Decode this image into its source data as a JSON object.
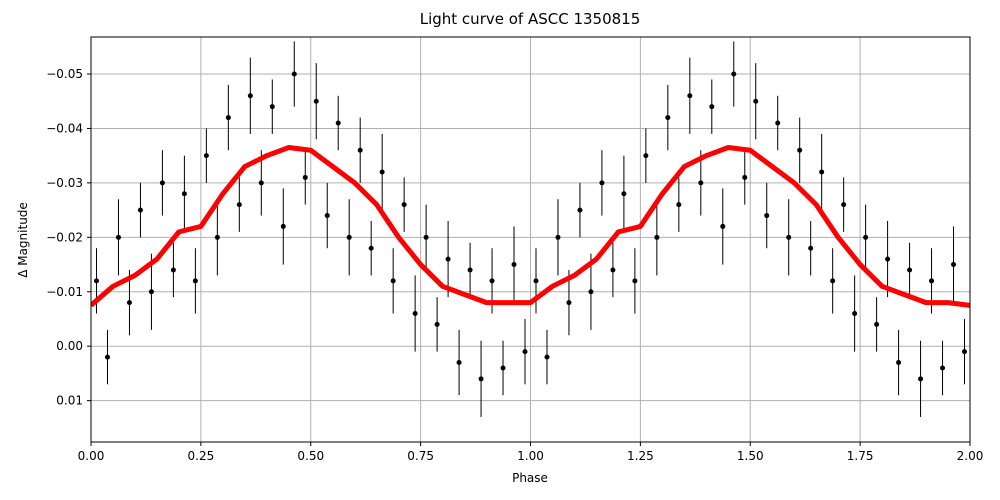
{
  "chart_data": {
    "type": "errorbar-line",
    "title": "Light curve of ASCC 1350815",
    "xlabel": "Phase",
    "ylabel": "Δ Magnitude",
    "xlim": [
      0,
      2
    ],
    "ylim": [
      0.0176,
      -0.0568
    ],
    "grid": true,
    "xticks": [
      {
        "value": 0,
        "label": "0.00"
      },
      {
        "value": 0.25,
        "label": "0.25"
      },
      {
        "value": 0.5,
        "label": "0.50"
      },
      {
        "value": 0.75,
        "label": "0.75"
      },
      {
        "value": 1,
        "label": "1.00"
      },
      {
        "value": 1.25,
        "label": "1.25"
      },
      {
        "value": 1.5,
        "label": "1.50"
      },
      {
        "value": 1.75,
        "label": "1.75"
      },
      {
        "value": 2,
        "label": "2.00"
      }
    ],
    "yticks": [
      {
        "value": -0.05,
        "label": "−0.05"
      },
      {
        "value": -0.04,
        "label": "−0.04"
      },
      {
        "value": -0.03,
        "label": "−0.03"
      },
      {
        "value": -0.02,
        "label": "−0.02"
      },
      {
        "value": -0.01,
        "label": "−0.01"
      },
      {
        "value": 0,
        "label": "0.00"
      },
      {
        "value": 0.01,
        "label": "0.01"
      }
    ],
    "points": {
      "color": "#000000",
      "x": [
        0.0125,
        0.0375,
        0.0625,
        0.0875,
        0.1125,
        0.1375,
        0.1625,
        0.1875,
        0.2125,
        0.2375,
        0.2625,
        0.2875,
        0.3125,
        0.3375,
        0.3625,
        0.3875,
        0.4125,
        0.4375,
        0.4625,
        0.4875,
        0.5125,
        0.5375,
        0.5625,
        0.5875,
        0.6125,
        0.6375,
        0.6625,
        0.6875,
        0.7125,
        0.7375,
        0.7625,
        0.7875,
        0.8125,
        0.8375,
        0.8625,
        0.8875,
        0.9125,
        0.9375,
        0.9625,
        0.9875,
        1.0125,
        1.0375,
        1.0625,
        1.0875,
        1.1125,
        1.1375,
        1.1625,
        1.1875,
        1.2125,
        1.2375,
        1.2625,
        1.2875,
        1.3125,
        1.3375,
        1.3625,
        1.3875,
        1.4125,
        1.4375,
        1.4625,
        1.4875,
        1.5125,
        1.5375,
        1.5625,
        1.5875,
        1.6125,
        1.6375,
        1.6625,
        1.6875,
        1.7125,
        1.7375,
        1.7625,
        1.7875,
        1.8125,
        1.8375,
        1.8625,
        1.8875,
        1.9125,
        1.9375,
        1.9625,
        1.9875
      ],
      "values": [
        -0.012,
        0.002,
        -0.02,
        -0.008,
        -0.025,
        -0.01,
        -0.03,
        -0.014,
        -0.028,
        -0.012,
        -0.035,
        -0.02,
        -0.042,
        -0.026,
        -0.046,
        -0.03,
        -0.044,
        -0.022,
        -0.05,
        -0.031,
        -0.045,
        -0.024,
        -0.041,
        -0.02,
        -0.036,
        -0.018,
        -0.032,
        -0.012,
        -0.026,
        -0.006,
        -0.02,
        -0.004,
        -0.016,
        0.003,
        -0.014,
        0.006,
        -0.012,
        0.004,
        -0.015,
        0.001,
        -0.012,
        0.002,
        -0.02,
        -0.008,
        -0.025,
        -0.01,
        -0.03,
        -0.014,
        -0.028,
        -0.012,
        -0.035,
        -0.02,
        -0.042,
        -0.026,
        -0.046,
        -0.03,
        -0.044,
        -0.022,
        -0.05,
        -0.031,
        -0.045,
        -0.024,
        -0.041,
        -0.02,
        -0.036,
        -0.018,
        -0.032,
        -0.012,
        -0.026,
        -0.006,
        -0.02,
        -0.004,
        -0.016,
        0.003,
        -0.014,
        0.006,
        -0.012,
        0.004,
        -0.015,
        0.001
      ],
      "errors": [
        0.006,
        0.005,
        0.007,
        0.006,
        0.005,
        0.007,
        0.006,
        0.005,
        0.007,
        0.006,
        0.005,
        0.007,
        0.006,
        0.005,
        0.007,
        0.006,
        0.005,
        0.007,
        0.006,
        0.005,
        0.007,
        0.006,
        0.005,
        0.007,
        0.006,
        0.005,
        0.007,
        0.006,
        0.005,
        0.007,
        0.006,
        0.005,
        0.007,
        0.006,
        0.005,
        0.007,
        0.006,
        0.005,
        0.007,
        0.006,
        0.006,
        0.005,
        0.007,
        0.006,
        0.005,
        0.007,
        0.006,
        0.005,
        0.007,
        0.006,
        0.005,
        0.007,
        0.006,
        0.005,
        0.007,
        0.006,
        0.005,
        0.007,
        0.006,
        0.005,
        0.007,
        0.006,
        0.005,
        0.007,
        0.006,
        0.005,
        0.007,
        0.006,
        0.005,
        0.007,
        0.006,
        0.005,
        0.007,
        0.006,
        0.005,
        0.007,
        0.006,
        0.005,
        0.007,
        0.006
      ]
    },
    "curve": {
      "color": "#ff0000",
      "x": [
        0,
        0.05,
        0.1,
        0.15,
        0.2,
        0.25,
        0.3,
        0.35,
        0.4,
        0.45,
        0.5,
        0.55,
        0.6,
        0.65,
        0.7,
        0.75,
        0.8,
        0.85,
        0.9,
        0.95,
        1,
        1.05,
        1.1,
        1.15,
        1.2,
        1.25,
        1.3,
        1.35,
        1.4,
        1.45,
        1.5,
        1.55,
        1.6,
        1.65,
        1.7,
        1.75,
        1.8,
        1.85,
        1.9,
        1.95,
        2
      ],
      "values": [
        -0.0075,
        -0.011,
        -0.013,
        -0.016,
        -0.021,
        -0.022,
        -0.028,
        -0.033,
        -0.035,
        -0.0365,
        -0.036,
        -0.033,
        -0.03,
        -0.026,
        -0.02,
        -0.015,
        -0.011,
        -0.0095,
        -0.008,
        -0.008,
        -0.008,
        -0.011,
        -0.013,
        -0.016,
        -0.021,
        -0.022,
        -0.028,
        -0.033,
        -0.035,
        -0.0365,
        -0.036,
        -0.033,
        -0.03,
        -0.026,
        -0.02,
        -0.015,
        -0.011,
        -0.0095,
        -0.008,
        -0.008,
        -0.0075
      ]
    }
  }
}
